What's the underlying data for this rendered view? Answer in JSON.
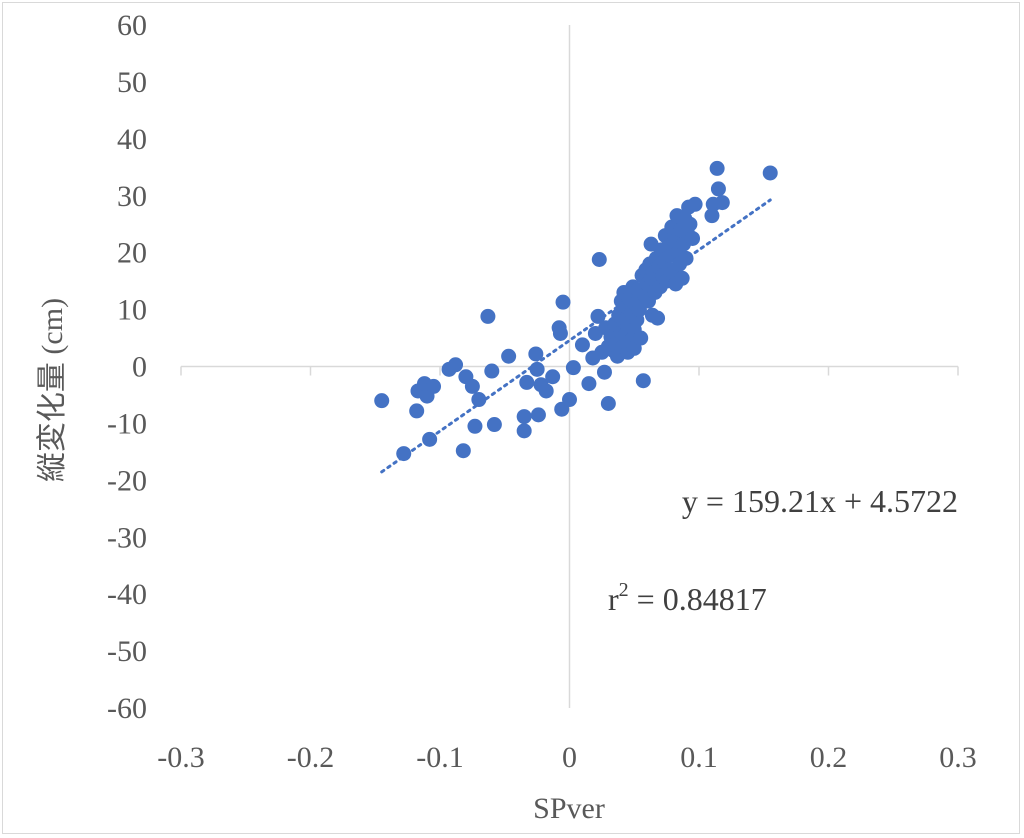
{
  "chart_data": {
    "type": "scatter",
    "xlabel": "SPver",
    "ylabel": "縦変化量 (cm)",
    "xlim": [
      -0.3,
      0.3
    ],
    "ylim": [
      -60,
      60
    ],
    "x_ticks": [
      "-0.3",
      "-0.2",
      "-0.1",
      "0",
      "0.1",
      "0.2",
      "0.3"
    ],
    "y_ticks": [
      "60",
      "50",
      "40",
      "30",
      "20",
      "10",
      "0",
      "-10",
      "-20",
      "-30",
      "-40",
      "-50",
      "-60"
    ],
    "grid": false,
    "legend": "none",
    "marker_color": "#4472C4",
    "trendline": {
      "type": "linear",
      "slope": 159.21,
      "intercept": 4.5722,
      "x_range": [
        -0.145,
        0.155
      ],
      "style": "dotted",
      "equation": "y = 159.21x + 4.5722",
      "r2_base": "r",
      "r2_sup": "2",
      "r2_value": " = 0.84817"
    },
    "points": [
      [
        -0.145,
        -6.0
      ],
      [
        -0.128,
        -15.3
      ],
      [
        -0.118,
        -7.8
      ],
      [
        -0.117,
        -4.3
      ],
      [
        -0.112,
        -3.0
      ],
      [
        -0.11,
        -5.2
      ],
      [
        -0.108,
        -12.8
      ],
      [
        -0.105,
        -3.5
      ],
      [
        -0.093,
        -0.5
      ],
      [
        -0.088,
        0.3
      ],
      [
        -0.082,
        -14.8
      ],
      [
        -0.08,
        -1.8
      ],
      [
        -0.075,
        -3.5
      ],
      [
        -0.073,
        -10.5
      ],
      [
        -0.07,
        -5.8
      ],
      [
        -0.063,
        8.8
      ],
      [
        -0.06,
        -0.8
      ],
      [
        -0.058,
        -10.2
      ],
      [
        -0.047,
        1.8
      ],
      [
        -0.035,
        -11.3
      ],
      [
        -0.035,
        -8.8
      ],
      [
        -0.033,
        -2.8
      ],
      [
        -0.026,
        2.2
      ],
      [
        -0.025,
        -0.5
      ],
      [
        -0.024,
        -8.5
      ],
      [
        -0.022,
        -3.2
      ],
      [
        -0.018,
        -4.3
      ],
      [
        -0.013,
        -1.8
      ],
      [
        -0.008,
        6.8
      ],
      [
        -0.007,
        5.8
      ],
      [
        -0.006,
        -7.5
      ],
      [
        -0.005,
        11.3
      ],
      [
        0.0,
        -5.8
      ],
      [
        0.003,
        -0.2
      ],
      [
        0.01,
        3.8
      ],
      [
        0.015,
        -3.0
      ],
      [
        0.018,
        1.5
      ],
      [
        0.02,
        5.8
      ],
      [
        0.022,
        8.8
      ],
      [
        0.023,
        18.8
      ],
      [
        0.025,
        2.5
      ],
      [
        0.027,
        -1.0
      ],
      [
        0.028,
        6.8
      ],
      [
        0.03,
        -6.5
      ],
      [
        0.03,
        3.5
      ],
      [
        0.032,
        5.2
      ],
      [
        0.034,
        2.8
      ],
      [
        0.035,
        7.5
      ],
      [
        0.036,
        4.0
      ],
      [
        0.037,
        1.8
      ],
      [
        0.038,
        9.0
      ],
      [
        0.04,
        6.0
      ],
      [
        0.04,
        11.5
      ],
      [
        0.041,
        3.5
      ],
      [
        0.042,
        8.0
      ],
      [
        0.042,
        13.0
      ],
      [
        0.043,
        5.5
      ],
      [
        0.044,
        10.5
      ],
      [
        0.045,
        7.0
      ],
      [
        0.045,
        2.5
      ],
      [
        0.046,
        12.0
      ],
      [
        0.047,
        4.5
      ],
      [
        0.048,
        9.5
      ],
      [
        0.049,
        14.0
      ],
      [
        0.05,
        6.5
      ],
      [
        0.05,
        3.2
      ],
      [
        0.051,
        11.0
      ],
      [
        0.052,
        8.2
      ],
      [
        0.053,
        13.5
      ],
      [
        0.054,
        10.0
      ],
      [
        0.055,
        5.0
      ],
      [
        0.056,
        16.0
      ],
      [
        0.057,
        -2.5
      ],
      [
        0.058,
        12.5
      ],
      [
        0.059,
        17.0
      ],
      [
        0.06,
        14.5
      ],
      [
        0.061,
        11.5
      ],
      [
        0.062,
        18.0
      ],
      [
        0.063,
        15.5
      ],
      [
        0.063,
        21.5
      ],
      [
        0.064,
        9.0
      ],
      [
        0.065,
        16.5
      ],
      [
        0.066,
        13.0
      ],
      [
        0.067,
        19.0
      ],
      [
        0.068,
        8.5
      ],
      [
        0.069,
        17.5
      ],
      [
        0.07,
        14.0
      ],
      [
        0.071,
        20.5
      ],
      [
        0.072,
        16.0
      ],
      [
        0.073,
        18.5
      ],
      [
        0.074,
        23.0
      ],
      [
        0.075,
        15.0
      ],
      [
        0.076,
        21.0
      ],
      [
        0.077,
        17.0
      ],
      [
        0.078,
        19.5
      ],
      [
        0.079,
        24.5
      ],
      [
        0.08,
        16.5
      ],
      [
        0.081,
        22.0
      ],
      [
        0.082,
        14.5
      ],
      [
        0.083,
        26.5
      ],
      [
        0.084,
        20.0
      ],
      [
        0.085,
        18.0
      ],
      [
        0.086,
        24.0
      ],
      [
        0.087,
        15.5
      ],
      [
        0.088,
        21.5
      ],
      [
        0.089,
        26.0
      ],
      [
        0.09,
        19.0
      ],
      [
        0.091,
        23.5
      ],
      [
        0.092,
        28.0
      ],
      [
        0.093,
        25.0
      ],
      [
        0.095,
        22.5
      ],
      [
        0.097,
        28.5
      ],
      [
        0.11,
        26.5
      ],
      [
        0.111,
        28.5
      ],
      [
        0.114,
        34.8
      ],
      [
        0.115,
        31.2
      ],
      [
        0.118,
        28.8
      ],
      [
        0.155,
        34.0
      ]
    ]
  }
}
